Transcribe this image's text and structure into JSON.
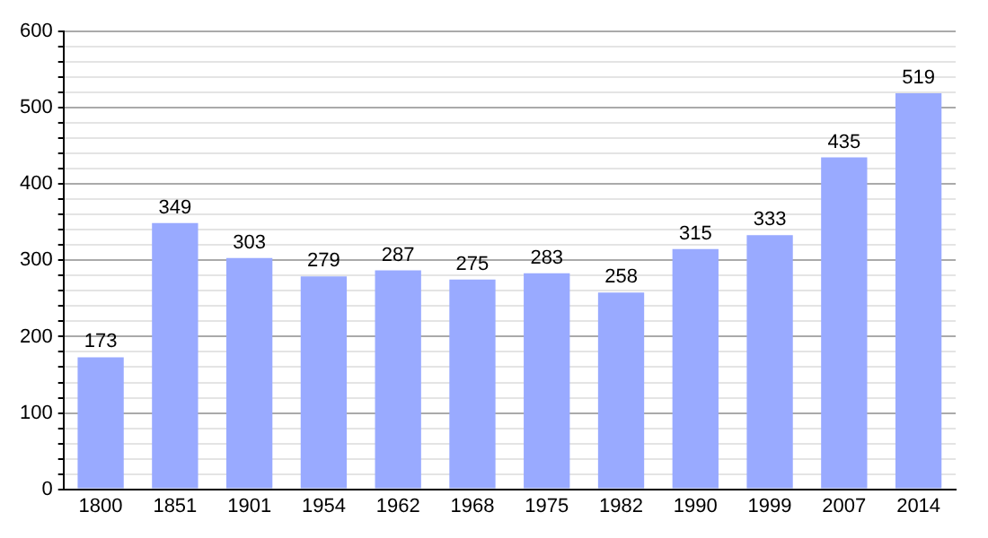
{
  "chart_data": {
    "type": "bar",
    "categories": [
      "1800",
      "1851",
      "1901",
      "1954",
      "1962",
      "1968",
      "1975",
      "1982",
      "1990",
      "1999",
      "2007",
      "2014"
    ],
    "values": [
      173,
      349,
      303,
      279,
      287,
      275,
      283,
      258,
      315,
      333,
      435,
      519
    ],
    "color": "#99aaff",
    "data_labels": true,
    "grid": "y",
    "ylim": [
      0,
      600
    ],
    "yticks": [
      0,
      {
        "value": 20,
        "label": null
      },
      {
        "value": 40,
        "label": null
      },
      {
        "value": 60,
        "label": null
      },
      {
        "value": 80,
        "label": null
      },
      100,
      {
        "value": 120,
        "label": null
      },
      {
        "value": 140,
        "label": null
      },
      {
        "value": 160,
        "label": null
      },
      {
        "value": 180,
        "label": null
      },
      200,
      {
        "value": 220,
        "label": null
      },
      {
        "value": 240,
        "label": null
      },
      {
        "value": 260,
        "label": null
      },
      {
        "value": 280,
        "label": null
      },
      300,
      {
        "value": 320,
        "label": null
      },
      {
        "value": 340,
        "label": null
      },
      {
        "value": 360,
        "label": null
      },
      {
        "value": 380,
        "label": null
      },
      400,
      {
        "value": 420,
        "label": null
      },
      {
        "value": 440,
        "label": null
      },
      {
        "value": 460,
        "label": null
      },
      {
        "value": 480,
        "label": null
      },
      500,
      {
        "value": 520,
        "label": null
      },
      {
        "value": 540,
        "label": null
      },
      {
        "value": 560,
        "label": null
      },
      {
        "value": 580,
        "label": null
      },
      600
    ]
  }
}
